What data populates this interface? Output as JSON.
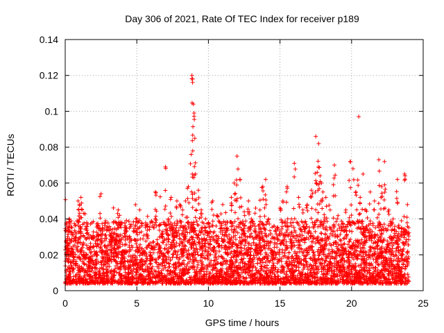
{
  "chart_data": {
    "type": "scatter",
    "title": "Day 306 of 2021, Rate Of TEC Index for receiver p189",
    "xlabel": "GPS time / hours",
    "ylabel": "ROTI / TECUs",
    "xlim": [
      0,
      25
    ],
    "ylim": [
      0,
      0.14
    ],
    "xticks": [
      0,
      5,
      10,
      15,
      20,
      25
    ],
    "xtick_labels": [
      "0",
      "5",
      "10",
      "15",
      "20",
      "25"
    ],
    "yticks": [
      0,
      0.02,
      0.04,
      0.06,
      0.08,
      0.1,
      0.12,
      0.14
    ],
    "ytick_labels": [
      "0",
      "0.02",
      "0.04",
      "0.06",
      "0.08",
      "0.1",
      "0.12",
      "0.14"
    ],
    "grid": true,
    "marker": "+",
    "marker_color": "#ff0000",
    "series": [
      {
        "name": "ROTI",
        "x": [
          0.1,
          0.2,
          0.3,
          0.5,
          0.7,
          0.9,
          1.0,
          1.1,
          1.3,
          1.5,
          1.7,
          2.0,
          2.2,
          2.5,
          2.6,
          2.8,
          3.0,
          3.2,
          3.5,
          3.7,
          3.8,
          4.0,
          4.2,
          4.5,
          4.8,
          5.0,
          5.2,
          5.5,
          6.0,
          6.3,
          6.6,
          7.0,
          7.2,
          7.4,
          7.6,
          7.8,
          8.0,
          8.2,
          8.4,
          8.6,
          8.8,
          8.85,
          8.9,
          8.95,
          9.0,
          9.05,
          9.1,
          9.3,
          9.5,
          9.8,
          10.0,
          10.3,
          10.6,
          11.0,
          11.3,
          11.6,
          11.8,
          12.0,
          12.2,
          12.5,
          12.8,
          13.0,
          13.3,
          13.6,
          13.8,
          14.0,
          14.2,
          14.5,
          14.8,
          15.0,
          15.2,
          15.5,
          15.8,
          16.0,
          16.3,
          16.6,
          16.9,
          17.2,
          17.5,
          17.6,
          17.7,
          17.8,
          17.9,
          18.0,
          18.2,
          18.5,
          18.8,
          19.0,
          19.3,
          19.6,
          19.9,
          20.1,
          20.3,
          20.5,
          20.6,
          20.8,
          21.0,
          21.3,
          21.6,
          21.9,
          22.1,
          22.3,
          22.6,
          22.9,
          23.2,
          23.5,
          23.7,
          23.9
        ],
        "y": [
          0.028,
          0.034,
          0.04,
          0.022,
          0.03,
          0.05,
          0.048,
          0.052,
          0.018,
          0.038,
          0.012,
          0.03,
          0.02,
          0.054,
          0.035,
          0.038,
          0.015,
          0.032,
          0.028,
          0.045,
          0.042,
          0.02,
          0.034,
          0.03,
          0.015,
          0.04,
          0.045,
          0.022,
          0.018,
          0.055,
          0.03,
          0.069,
          0.04,
          0.052,
          0.035,
          0.05,
          0.048,
          0.045,
          0.05,
          0.058,
          0.076,
          0.12,
          0.118,
          0.104,
          0.099,
          0.085,
          0.065,
          0.056,
          0.045,
          0.04,
          0.038,
          0.05,
          0.042,
          0.048,
          0.035,
          0.052,
          0.06,
          0.075,
          0.062,
          0.044,
          0.05,
          0.04,
          0.046,
          0.045,
          0.058,
          0.062,
          0.04,
          0.03,
          0.035,
          0.046,
          0.05,
          0.058,
          0.04,
          0.071,
          0.052,
          0.045,
          0.048,
          0.056,
          0.086,
          0.066,
          0.082,
          0.064,
          0.06,
          0.055,
          0.052,
          0.045,
          0.07,
          0.04,
          0.035,
          0.045,
          0.072,
          0.068,
          0.055,
          0.097,
          0.052,
          0.065,
          0.045,
          0.055,
          0.05,
          0.073,
          0.058,
          0.072,
          0.045,
          0.04,
          0.062,
          0.035,
          0.065,
          0.048
        ]
      }
    ],
    "background_noise": {
      "description_range_x": [
        0,
        24
      ],
      "y_floor": 0.004,
      "typical_max": 0.035
    }
  }
}
